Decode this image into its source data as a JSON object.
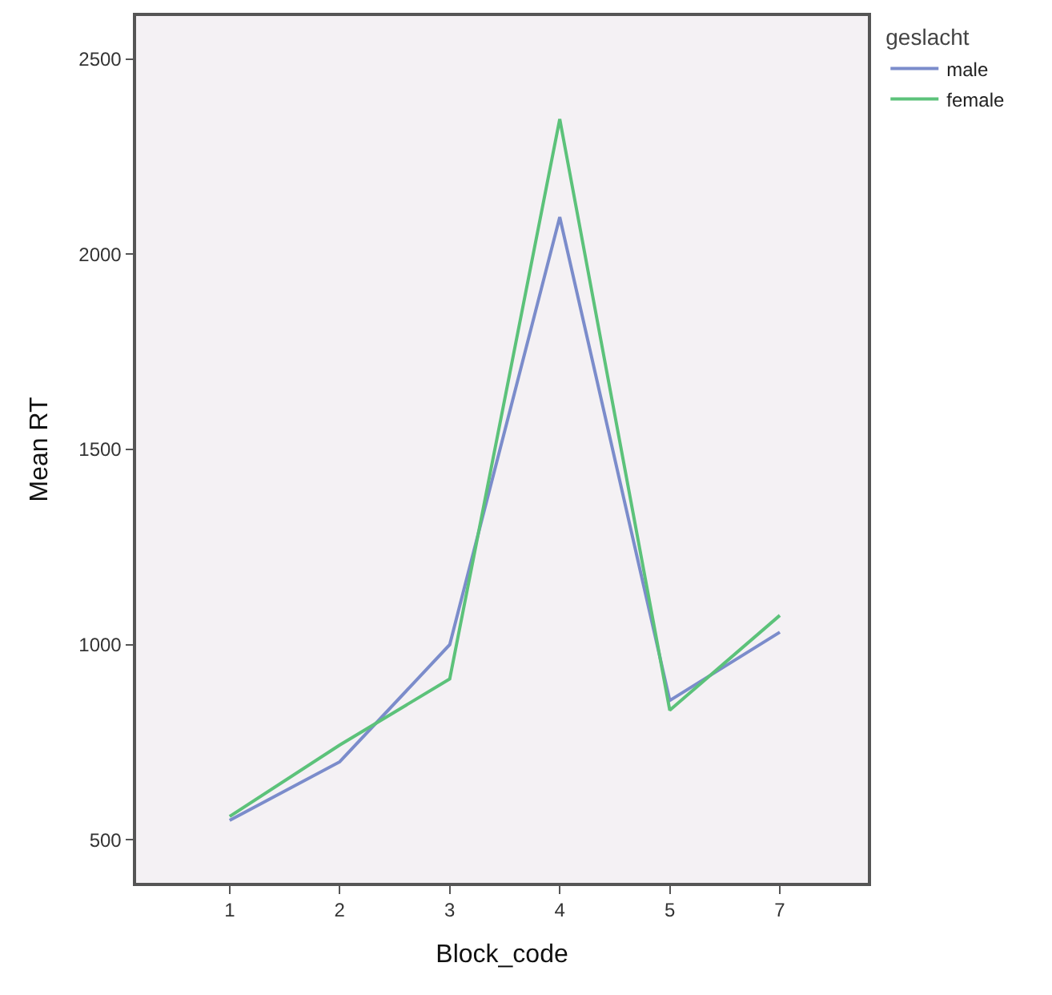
{
  "chart_data": {
    "type": "line",
    "xlabel": "Block_code",
    "ylabel": "Mean RT",
    "legend_title": "geslacht",
    "categories": [
      "1",
      "2",
      "3",
      "4",
      "5",
      "7"
    ],
    "series": [
      {
        "name": "male",
        "color": "#7b8ccb",
        "values": [
          550,
          700,
          1000,
          2095,
          857,
          1032
        ]
      },
      {
        "name": "female",
        "color": "#5cc27a",
        "values": [
          560,
          743,
          912,
          2346,
          832,
          1075
        ]
      }
    ],
    "ylim": [
      390,
      2610
    ],
    "yticks": [
      500,
      1000,
      1500,
      2000,
      2500
    ],
    "grid": false,
    "legend": "top right",
    "marker": "none",
    "line_style": "solid"
  }
}
